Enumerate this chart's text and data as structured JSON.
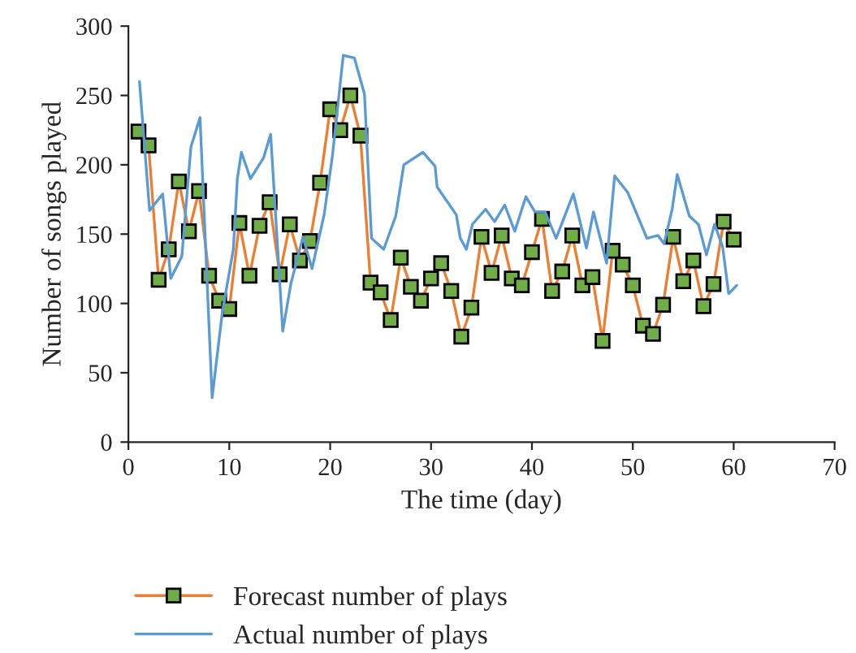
{
  "chart_data": {
    "type": "line",
    "xlabel": "The time (day)",
    "ylabel": "Number of songs played",
    "xlim": [
      0,
      70
    ],
    "xticks": [
      0,
      10,
      20,
      30,
      40,
      50,
      60,
      70
    ],
    "ylim": [
      0,
      300
    ],
    "yticks": [
      0,
      50,
      100,
      150,
      200,
      250,
      300
    ],
    "grid": false,
    "legend": "bottom",
    "series": [
      {
        "name": "Forecast number of plays",
        "color": "#ed7d31",
        "marker": "square",
        "line_style": "solid",
        "x": [
          1,
          2,
          3,
          4,
          5,
          6,
          7,
          8,
          9,
          10,
          11,
          12,
          13,
          14,
          15,
          16,
          17,
          18,
          19,
          20,
          21,
          22,
          23,
          24,
          25,
          26,
          27,
          28,
          29,
          30,
          31,
          32,
          33,
          34,
          35,
          36,
          37,
          38,
          39,
          40,
          41,
          42,
          43,
          44,
          45,
          46,
          47,
          48,
          49,
          50,
          51,
          52,
          53,
          54,
          55,
          56,
          57,
          58,
          59,
          60
        ],
        "values": [
          224,
          214,
          117,
          139,
          188,
          152,
          181,
          120,
          102,
          96,
          158,
          120,
          156,
          173,
          121,
          157,
          131,
          145,
          187,
          240,
          225,
          250,
          221,
          115,
          108,
          88,
          133,
          112,
          102,
          118,
          129,
          109,
          76,
          97,
          148,
          122,
          149,
          118,
          113,
          137,
          161,
          109,
          123,
          149,
          113,
          119,
          73,
          138,
          128,
          113,
          84,
          78,
          99,
          148,
          116,
          131,
          98,
          114,
          159,
          146
        ]
      },
      {
        "name": "Actual number of plays",
        "color": "#5b9bd5",
        "marker": "none",
        "line_style": "solid",
        "x": [
          1.1,
          2.1,
          3.4,
          4.2,
          5.3,
          6.2,
          7.1,
          8.3,
          9.3,
          10.4,
          10.8,
          11.2,
          12.1,
          13.4,
          14.1,
          15.3,
          16.1,
          17.3,
          18.2,
          19.4,
          20.2,
          21.3,
          22.4,
          23.4,
          24.1,
          25.3,
          26.5,
          27.3,
          29.2,
          30.4,
          30.6,
          32.5,
          32.9,
          33.5,
          34.1,
          35.4,
          36.3,
          37.3,
          38.3,
          39.4,
          40.3,
          41.3,
          42.4,
          44.1,
          45.4,
          46.1,
          47.4,
          48.2,
          49.5,
          51.4,
          52.5,
          53.1,
          53.9,
          54.4,
          55.6,
          56.5,
          57.3,
          58.1,
          58.9,
          59.5,
          60.3
        ],
        "values": [
          260,
          167,
          179,
          118,
          134,
          213,
          234,
          32,
          93,
          139,
          190,
          209,
          190,
          205,
          222,
          80,
          114,
          148,
          125,
          164,
          205,
          279,
          277,
          251,
          147,
          139,
          163,
          200,
          209,
          199,
          184,
          164,
          147,
          139,
          157,
          168,
          159,
          171,
          152,
          177,
          166,
          166,
          147,
          179,
          140,
          166,
          129,
          192,
          180,
          147,
          149,
          143,
          168,
          193,
          163,
          157,
          135,
          157,
          141,
          107,
          113
        ]
      }
    ]
  }
}
